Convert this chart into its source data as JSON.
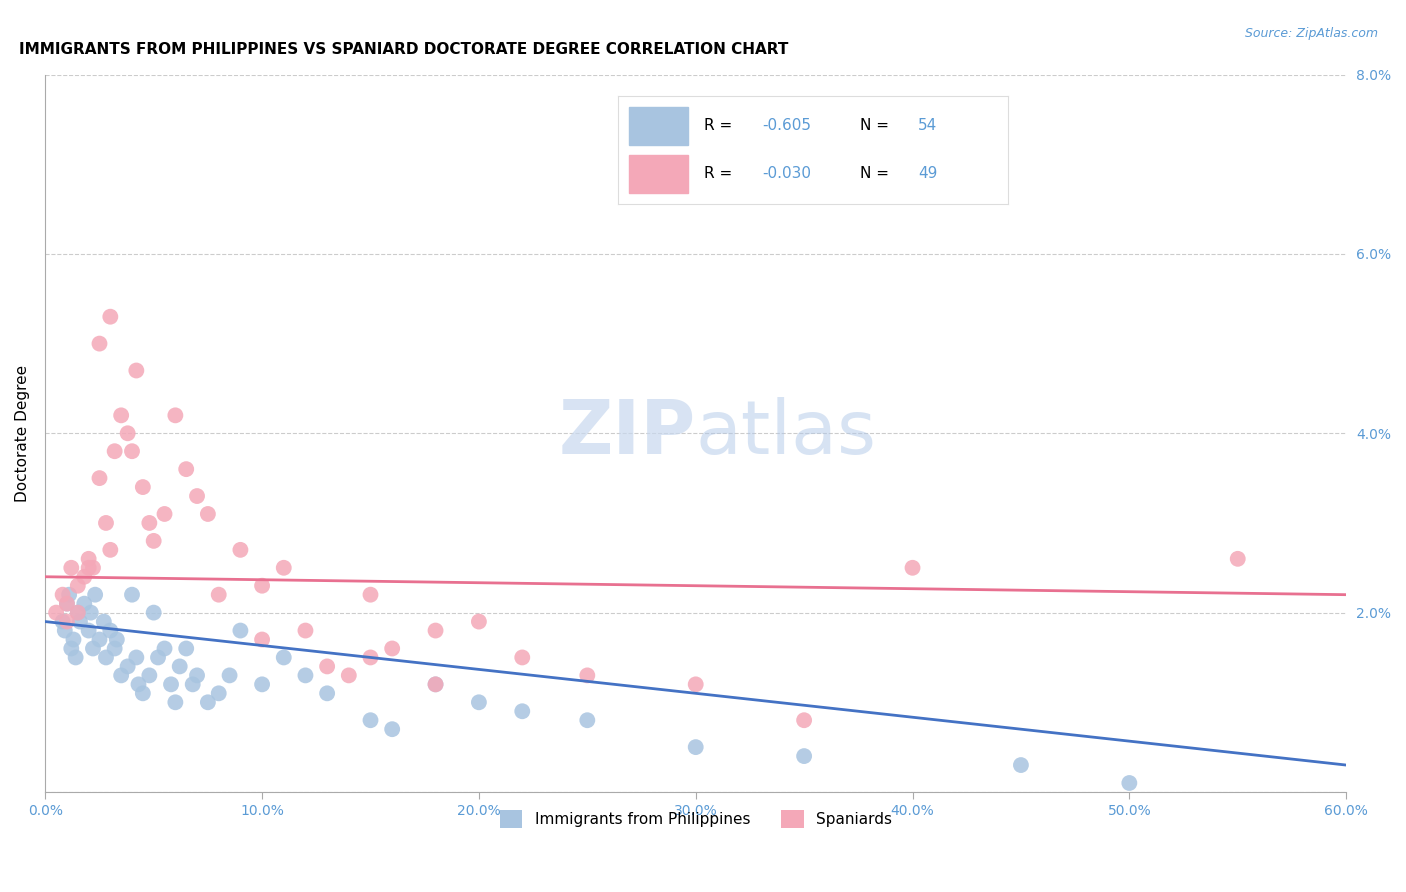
{
  "title": "IMMIGRANTS FROM PHILIPPINES VS SPANIARD DOCTORATE DEGREE CORRELATION CHART",
  "source": "Source: ZipAtlas.com",
  "ylabel": "Doctorate Degree",
  "legend_labels": [
    "Immigrants from Philippines",
    "Spaniards"
  ],
  "legend_r": [
    "-0.605",
    "-0.030"
  ],
  "legend_n": [
    "54",
    "49"
  ],
  "blue_color": "#a8c4e0",
  "pink_color": "#f4a8b8",
  "blue_line_color": "#4472c4",
  "pink_line_color": "#e87090",
  "axis_color": "#5b9bd5",
  "watermark_zip": "ZIP",
  "watermark_atlas": "atlas",
  "xlim": [
    0,
    0.6
  ],
  "ylim": [
    0,
    0.08
  ],
  "xticks": [
    0.0,
    0.1,
    0.2,
    0.3,
    0.4,
    0.5,
    0.6
  ],
  "yticks": [
    0.0,
    0.02,
    0.04,
    0.06,
    0.08
  ],
  "ytick_labels_right": [
    "",
    "2.0%",
    "4.0%",
    "6.0%",
    "8.0%"
  ],
  "xtick_labels": [
    "0.0%",
    "10.0%",
    "20.0%",
    "30.0%",
    "40.0%",
    "50.0%",
    "60.0%"
  ],
  "blue_x": [
    0.008,
    0.01,
    0.009,
    0.012,
    0.011,
    0.013,
    0.015,
    0.016,
    0.014,
    0.018,
    0.02,
    0.022,
    0.021,
    0.025,
    0.023,
    0.027,
    0.03,
    0.028,
    0.032,
    0.035,
    0.033,
    0.038,
    0.04,
    0.042,
    0.043,
    0.045,
    0.048,
    0.05,
    0.052,
    0.055,
    0.058,
    0.06,
    0.062,
    0.065,
    0.068,
    0.07,
    0.075,
    0.08,
    0.085,
    0.09,
    0.1,
    0.11,
    0.12,
    0.13,
    0.15,
    0.16,
    0.18,
    0.2,
    0.22,
    0.25,
    0.3,
    0.35,
    0.45,
    0.5
  ],
  "blue_y": [
    0.019,
    0.021,
    0.018,
    0.016,
    0.022,
    0.017,
    0.02,
    0.019,
    0.015,
    0.021,
    0.018,
    0.016,
    0.02,
    0.017,
    0.022,
    0.019,
    0.018,
    0.015,
    0.016,
    0.013,
    0.017,
    0.014,
    0.022,
    0.015,
    0.012,
    0.011,
    0.013,
    0.02,
    0.015,
    0.016,
    0.012,
    0.01,
    0.014,
    0.016,
    0.012,
    0.013,
    0.01,
    0.011,
    0.013,
    0.018,
    0.012,
    0.015,
    0.013,
    0.011,
    0.008,
    0.007,
    0.012,
    0.01,
    0.009,
    0.008,
    0.005,
    0.004,
    0.003,
    0.001
  ],
  "pink_x": [
    0.005,
    0.008,
    0.01,
    0.012,
    0.015,
    0.018,
    0.02,
    0.022,
    0.025,
    0.028,
    0.03,
    0.032,
    0.035,
    0.038,
    0.04,
    0.042,
    0.045,
    0.048,
    0.05,
    0.055,
    0.06,
    0.065,
    0.07,
    0.075,
    0.08,
    0.09,
    0.1,
    0.11,
    0.12,
    0.13,
    0.14,
    0.15,
    0.16,
    0.18,
    0.2,
    0.22,
    0.25,
    0.3,
    0.35,
    0.4,
    0.15,
    0.18,
    0.1,
    0.03,
    0.025,
    0.02,
    0.015,
    0.01,
    0.55
  ],
  "pink_y": [
    0.02,
    0.022,
    0.021,
    0.025,
    0.023,
    0.024,
    0.026,
    0.025,
    0.035,
    0.03,
    0.027,
    0.038,
    0.042,
    0.04,
    0.038,
    0.047,
    0.034,
    0.03,
    0.028,
    0.031,
    0.042,
    0.036,
    0.033,
    0.031,
    0.022,
    0.027,
    0.017,
    0.025,
    0.018,
    0.014,
    0.013,
    0.015,
    0.016,
    0.012,
    0.019,
    0.015,
    0.013,
    0.012,
    0.008,
    0.025,
    0.022,
    0.018,
    0.023,
    0.053,
    0.05,
    0.025,
    0.02,
    0.019,
    0.026
  ],
  "blue_trend": [
    0.019,
    0.003
  ],
  "pink_trend": [
    0.024,
    0.022
  ],
  "grid_color": "#cccccc",
  "background_color": "#ffffff",
  "title_fontsize": 11,
  "axis_label_fontsize": 11,
  "tick_fontsize": 10,
  "legend_fontsize": 11
}
